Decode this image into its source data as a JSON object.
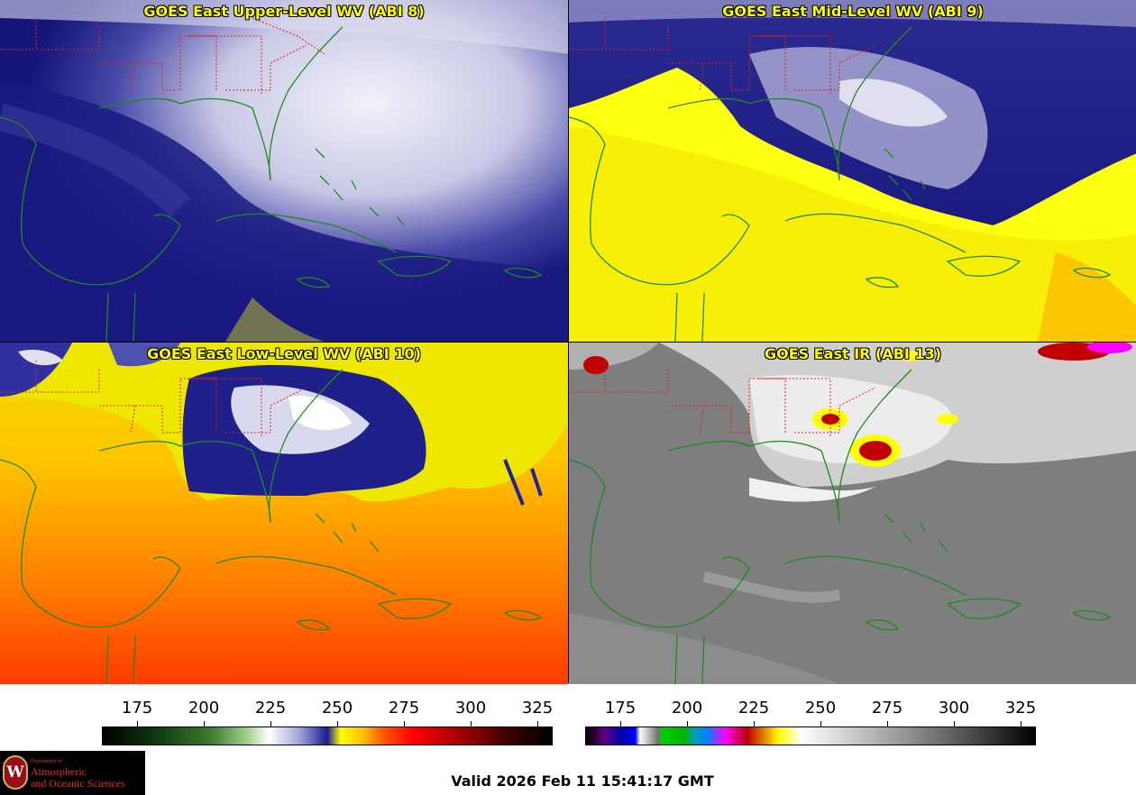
{
  "panels": [
    {
      "id": "p1",
      "title": "GOES East Upper-Level WV (ABI 8)"
    },
    {
      "id": "p2",
      "title": "GOES East Mid-Level WV (ABI 9)"
    },
    {
      "id": "p3",
      "title": "GOES East Low-Level WV (ABI 10)"
    },
    {
      "id": "p4",
      "title": "GOES East IR (ABI 13)"
    }
  ],
  "colorbars": {
    "wv": {
      "ticks": [
        "175",
        "200",
        "225",
        "250",
        "275",
        "300",
        "325"
      ]
    },
    "ir": {
      "ticks": [
        "175",
        "200",
        "225",
        "250",
        "275",
        "300",
        "325"
      ]
    }
  },
  "valid_time": "Valid 2026 Feb 11 15:41:17 GMT",
  "logo": {
    "department": "Department of",
    "line1": "Atmospheric",
    "line2": "and Oceanic Sciences",
    "seal_letter": "W"
  },
  "colors": {
    "coastline": "#1f8a1f",
    "state_borders": "#e02020",
    "title_text": "#ffff00"
  }
}
